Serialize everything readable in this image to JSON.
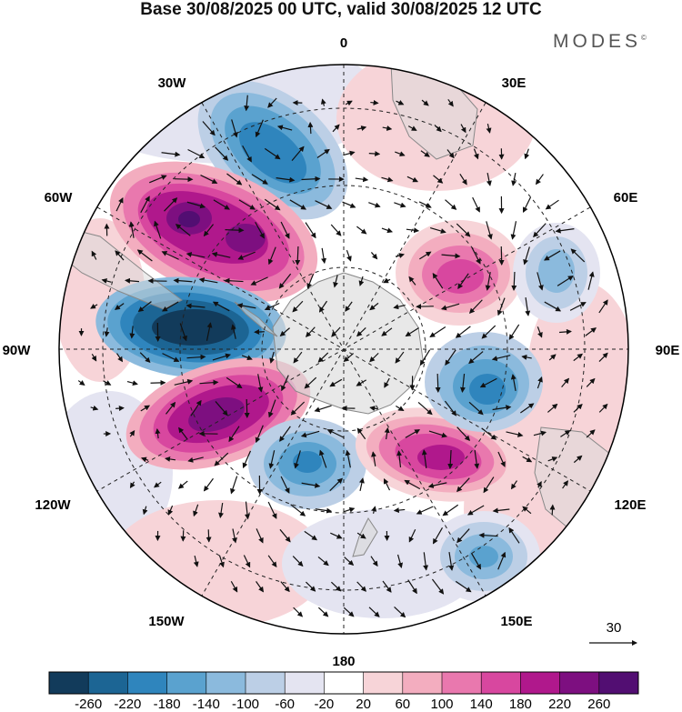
{
  "header": {
    "title": "Base 30/08/2025 00 UTC, valid 30/08/2025 12 UTC",
    "brand": "MODES",
    "brand_mark": "©"
  },
  "map": {
    "projection": "south polar stereographic",
    "longitude_labels": {
      "top": "0",
      "top_right": "30E",
      "right_upper": "60E",
      "right": "90E",
      "right_lower": "120E",
      "bottom_right": "150E",
      "bottom": "180",
      "bottom_left": "150W",
      "left_lower": "120W",
      "left": "90W",
      "left_upper": "60W",
      "top_left": "30W"
    },
    "reference_vector": {
      "value": "30"
    }
  },
  "colorbar": {
    "ticks": [
      "-260",
      "-220",
      "-180",
      "-140",
      "-100",
      "-60",
      "-20",
      "20",
      "60",
      "100",
      "140",
      "180",
      "220",
      "260"
    ],
    "colors": [
      "#123b5b",
      "#1c6594",
      "#2f85bd",
      "#5aa2cf",
      "#8bbadd",
      "#bccfe6",
      "#e4e4f1",
      "#ffffff",
      "#f7d4d8",
      "#f3adbf",
      "#e978ae",
      "#d8479f",
      "#b0188c",
      "#7d0f80",
      "#520e72"
    ]
  }
}
